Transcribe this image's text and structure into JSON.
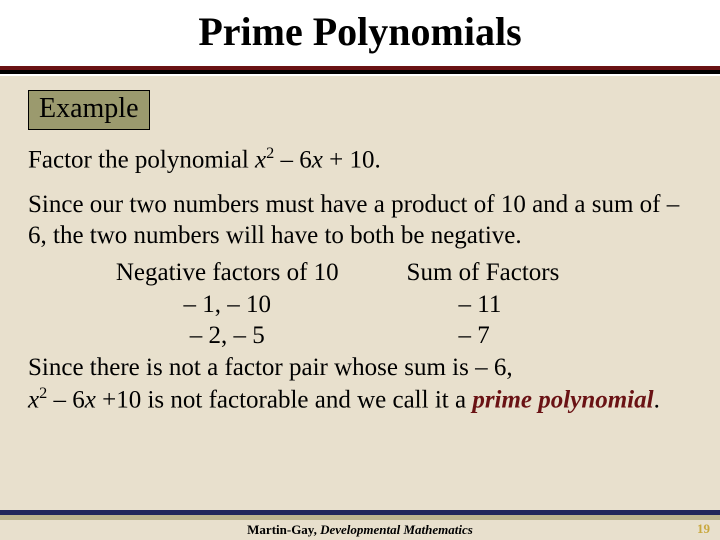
{
  "colors": {
    "maroon": "#6a1214",
    "black": "#000000",
    "beige": "#e8e0cd",
    "khaki": "#9b9a6e",
    "navy": "#1e2a5a",
    "footer_khaki": "#b9b88e",
    "page_num": "#c9a83e"
  },
  "title": "Prime Polynomials",
  "example_label": "Example",
  "prompt_prefix": "Factor the polynomial ",
  "prompt_poly_var": "x",
  "prompt_poly_exp": "2",
  "prompt_poly_rest": " – 6",
  "prompt_poly_rest2": " + 10.",
  "explain1": "Since our two numbers must have a product of 10 and a sum of – 6, the two numbers will have to both be negative.",
  "table": {
    "header_a": "Negative factors of 10",
    "header_b": "Sum of Factors",
    "rows": [
      {
        "factors": "– 1, – 10",
        "sum": "– 11"
      },
      {
        "factors": "– 2, – 5",
        "sum": "– 7"
      }
    ]
  },
  "conclusion_l1": "Since there is not a factor pair whose sum is – 6,",
  "conclusion_poly_var": "x",
  "conclusion_poly_exp": "2",
  "conclusion_poly_mid": " – 6",
  "conclusion_poly_end": " +10 is not factorable and we call it a ",
  "prime_term": "prime polynomial",
  "conclusion_period": ".",
  "footer_author": "Martin-Gay, ",
  "footer_book": "Developmental Mathematics",
  "page_number": "19"
}
